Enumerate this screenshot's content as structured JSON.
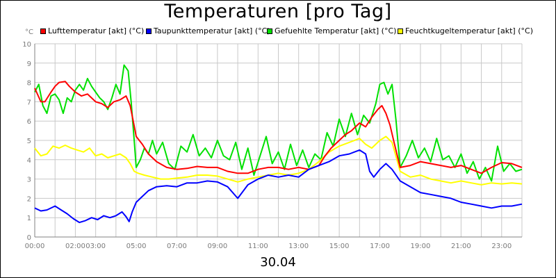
{
  "title": "Temperaturen [pro Tag]",
  "date_label": "30.04",
  "y_unit": "°C",
  "colors": {
    "grid": "#c8c8c8",
    "axis": "#808080",
    "tick_text": "#7a7a7a"
  },
  "chart_data": {
    "type": "line",
    "title": "Temperaturen [pro Tag]",
    "xlabel": "30.04",
    "ylabel": "°C",
    "x_unit": "hour of day",
    "xlim": [
      0,
      24
    ],
    "ylim": [
      0,
      10
    ],
    "grid": true,
    "legend_position": "top",
    "x_ticks": [
      {
        "x": 0,
        "label": "00:00"
      },
      {
        "x": 2,
        "label": "02:00"
      },
      {
        "x": 3,
        "label": "03:00"
      },
      {
        "x": 5,
        "label": "05:00"
      },
      {
        "x": 7,
        "label": "07:00"
      },
      {
        "x": 9,
        "label": "09:00"
      },
      {
        "x": 11,
        "label": "11:00"
      },
      {
        "x": 13,
        "label": "13:00"
      },
      {
        "x": 15,
        "label": "15:00"
      },
      {
        "x": 17,
        "label": "17:00"
      },
      {
        "x": 19,
        "label": "19:00"
      },
      {
        "x": 21,
        "label": "21:00"
      },
      {
        "x": 23,
        "label": "23:00"
      }
    ],
    "y_ticks": [
      0,
      1,
      2,
      3,
      4,
      5,
      6,
      7,
      8,
      9,
      10
    ],
    "series": [
      {
        "name": "Lufttemperatur [akt] (°C)",
        "color": "#ff0000",
        "x": [
          0,
          0.3,
          0.5,
          0.8,
          1.0,
          1.2,
          1.5,
          1.7,
          2.0,
          2.3,
          2.6,
          3.0,
          3.3,
          3.6,
          3.9,
          4.2,
          4.5,
          4.7,
          4.85,
          5.0,
          5.3,
          5.6,
          6.0,
          6.5,
          7.0,
          7.5,
          8.0,
          8.5,
          9.0,
          9.5,
          10.0,
          10.5,
          11.0,
          11.5,
          12.0,
          12.5,
          13.0,
          13.5,
          14.0,
          14.3,
          14.6,
          15.0,
          15.3,
          15.6,
          16.0,
          16.3,
          16.6,
          16.9,
          17.1,
          17.3,
          17.5,
          17.7,
          18.0,
          18.5,
          19.0,
          19.5,
          20.0,
          20.5,
          21.0,
          21.5,
          22.0,
          22.5,
          23.0,
          23.5,
          24.0
        ],
        "y": [
          7.7,
          7.0,
          7.0,
          7.5,
          7.8,
          8.0,
          8.05,
          7.8,
          7.5,
          7.3,
          7.4,
          7.0,
          6.9,
          6.7,
          7.0,
          7.1,
          7.3,
          6.8,
          6.0,
          5.2,
          4.8,
          4.3,
          3.9,
          3.6,
          3.5,
          3.55,
          3.65,
          3.6,
          3.6,
          3.4,
          3.3,
          3.3,
          3.5,
          3.6,
          3.6,
          3.5,
          3.6,
          3.5,
          3.7,
          4.2,
          4.6,
          5.0,
          5.3,
          5.5,
          5.9,
          5.7,
          6.2,
          6.6,
          6.8,
          6.4,
          5.8,
          4.9,
          3.6,
          3.7,
          3.9,
          3.8,
          3.7,
          3.6,
          3.7,
          3.5,
          3.3,
          3.6,
          3.85,
          3.8,
          3.6
        ]
      },
      {
        "name": "Taupunkttemperatur [akt] (°C)",
        "color": "#0000ff",
        "x": [
          0,
          0.3,
          0.6,
          1.0,
          1.3,
          1.6,
          1.9,
          2.2,
          2.5,
          2.8,
          3.1,
          3.4,
          3.7,
          4.0,
          4.3,
          4.5,
          4.65,
          4.8,
          5.0,
          5.3,
          5.6,
          6.0,
          6.5,
          7.0,
          7.5,
          8.0,
          8.5,
          9.0,
          9.5,
          10.0,
          10.5,
          11.0,
          11.5,
          12.0,
          12.5,
          13.0,
          13.5,
          14.0,
          14.5,
          15.0,
          15.5,
          16.0,
          16.3,
          16.5,
          16.7,
          17.0,
          17.3,
          17.6,
          18.0,
          18.5,
          19.0,
          19.5,
          20.0,
          20.5,
          21.0,
          21.5,
          22.0,
          22.5,
          23.0,
          23.5,
          24.0
        ],
        "y": [
          1.5,
          1.35,
          1.4,
          1.6,
          1.4,
          1.2,
          0.95,
          0.75,
          0.85,
          1.0,
          0.9,
          1.1,
          1.0,
          1.1,
          1.3,
          1.05,
          0.8,
          1.3,
          1.8,
          2.1,
          2.4,
          2.6,
          2.65,
          2.6,
          2.8,
          2.8,
          2.9,
          2.85,
          2.6,
          2.0,
          2.7,
          3.0,
          3.2,
          3.1,
          3.2,
          3.1,
          3.5,
          3.7,
          3.9,
          4.2,
          4.3,
          4.5,
          4.3,
          3.4,
          3.1,
          3.5,
          3.8,
          3.5,
          2.9,
          2.6,
          2.3,
          2.2,
          2.1,
          2.0,
          1.8,
          1.7,
          1.6,
          1.5,
          1.6,
          1.6,
          1.7
        ]
      },
      {
        "name": "Gefuehlte Temperatur [akt] (°C)",
        "color": "#00e000",
        "x": [
          0,
          0.2,
          0.4,
          0.6,
          0.8,
          1.0,
          1.2,
          1.4,
          1.6,
          1.8,
          2.0,
          2.2,
          2.4,
          2.6,
          2.8,
          3.0,
          3.2,
          3.4,
          3.6,
          3.8,
          4.0,
          4.2,
          4.4,
          4.6,
          4.75,
          4.9,
          5.0,
          5.2,
          5.4,
          5.6,
          5.8,
          6.0,
          6.3,
          6.6,
          6.9,
          7.2,
          7.5,
          7.8,
          8.1,
          8.4,
          8.7,
          9.0,
          9.3,
          9.6,
          9.9,
          10.2,
          10.5,
          10.8,
          11.1,
          11.4,
          11.7,
          12.0,
          12.3,
          12.6,
          12.9,
          13.2,
          13.5,
          13.8,
          14.1,
          14.4,
          14.7,
          15.0,
          15.3,
          15.6,
          15.9,
          16.2,
          16.5,
          16.8,
          17.0,
          17.2,
          17.4,
          17.6,
          17.8,
          18.0,
          18.3,
          18.6,
          18.9,
          19.2,
          19.5,
          19.8,
          20.1,
          20.4,
          20.7,
          21.0,
          21.3,
          21.6,
          21.9,
          22.2,
          22.5,
          22.8,
          23.1,
          23.4,
          23.7,
          24.0
        ],
        "y": [
          7.5,
          7.9,
          6.8,
          6.4,
          7.3,
          7.4,
          7.1,
          6.4,
          7.2,
          7.0,
          7.6,
          7.9,
          7.6,
          8.2,
          7.8,
          7.5,
          7.2,
          7.0,
          6.6,
          7.2,
          7.9,
          7.4,
          8.9,
          8.6,
          7.0,
          5.0,
          3.6,
          4.0,
          4.6,
          4.3,
          5.0,
          4.3,
          4.9,
          3.8,
          3.5,
          4.7,
          4.4,
          5.3,
          4.2,
          4.6,
          4.1,
          5.0,
          4.2,
          4.0,
          4.9,
          3.5,
          4.6,
          3.2,
          4.2,
          5.2,
          3.8,
          4.4,
          3.5,
          4.8,
          3.7,
          4.5,
          3.6,
          4.3,
          4.0,
          5.4,
          4.7,
          6.1,
          5.2,
          6.4,
          5.3,
          6.3,
          5.9,
          6.9,
          7.9,
          8.0,
          7.4,
          7.9,
          6.0,
          3.6,
          4.2,
          5.0,
          4.1,
          4.6,
          3.9,
          5.1,
          4.0,
          4.2,
          3.6,
          4.3,
          3.3,
          3.9,
          3.0,
          3.6,
          2.9,
          4.7,
          3.4,
          3.8,
          3.4,
          3.5
        ]
      },
      {
        "name": "Feuchtkugeltemperatur [akt] (°C)",
        "color": "#ffff00",
        "x": [
          0,
          0.3,
          0.6,
          0.9,
          1.2,
          1.5,
          1.8,
          2.1,
          2.4,
          2.7,
          3.0,
          3.3,
          3.6,
          3.9,
          4.2,
          4.5,
          4.7,
          4.9,
          5.1,
          5.4,
          5.8,
          6.2,
          6.6,
          7.0,
          7.5,
          8.0,
          8.5,
          9.0,
          9.5,
          10.0,
          10.5,
          11.0,
          11.5,
          12.0,
          12.5,
          13.0,
          13.5,
          14.0,
          14.5,
          15.0,
          15.5,
          16.0,
          16.3,
          16.6,
          17.0,
          17.3,
          17.6,
          18.0,
          18.5,
          19.0,
          19.5,
          20.0,
          20.5,
          21.0,
          21.5,
          22.0,
          22.5,
          23.0,
          23.5,
          24.0
        ],
        "y": [
          4.6,
          4.2,
          4.3,
          4.7,
          4.6,
          4.75,
          4.6,
          4.5,
          4.4,
          4.6,
          4.2,
          4.3,
          4.1,
          4.2,
          4.3,
          4.1,
          3.8,
          3.4,
          3.3,
          3.2,
          3.1,
          3.0,
          3.0,
          3.05,
          3.1,
          3.2,
          3.2,
          3.15,
          3.0,
          2.85,
          3.0,
          3.1,
          3.2,
          3.3,
          3.2,
          3.3,
          3.5,
          3.9,
          4.4,
          4.7,
          4.9,
          5.1,
          4.8,
          4.6,
          5.0,
          5.2,
          4.9,
          3.4,
          3.1,
          3.2,
          3.0,
          2.9,
          2.8,
          2.9,
          2.8,
          2.7,
          2.8,
          2.75,
          2.8,
          2.75
        ]
      }
    ]
  }
}
